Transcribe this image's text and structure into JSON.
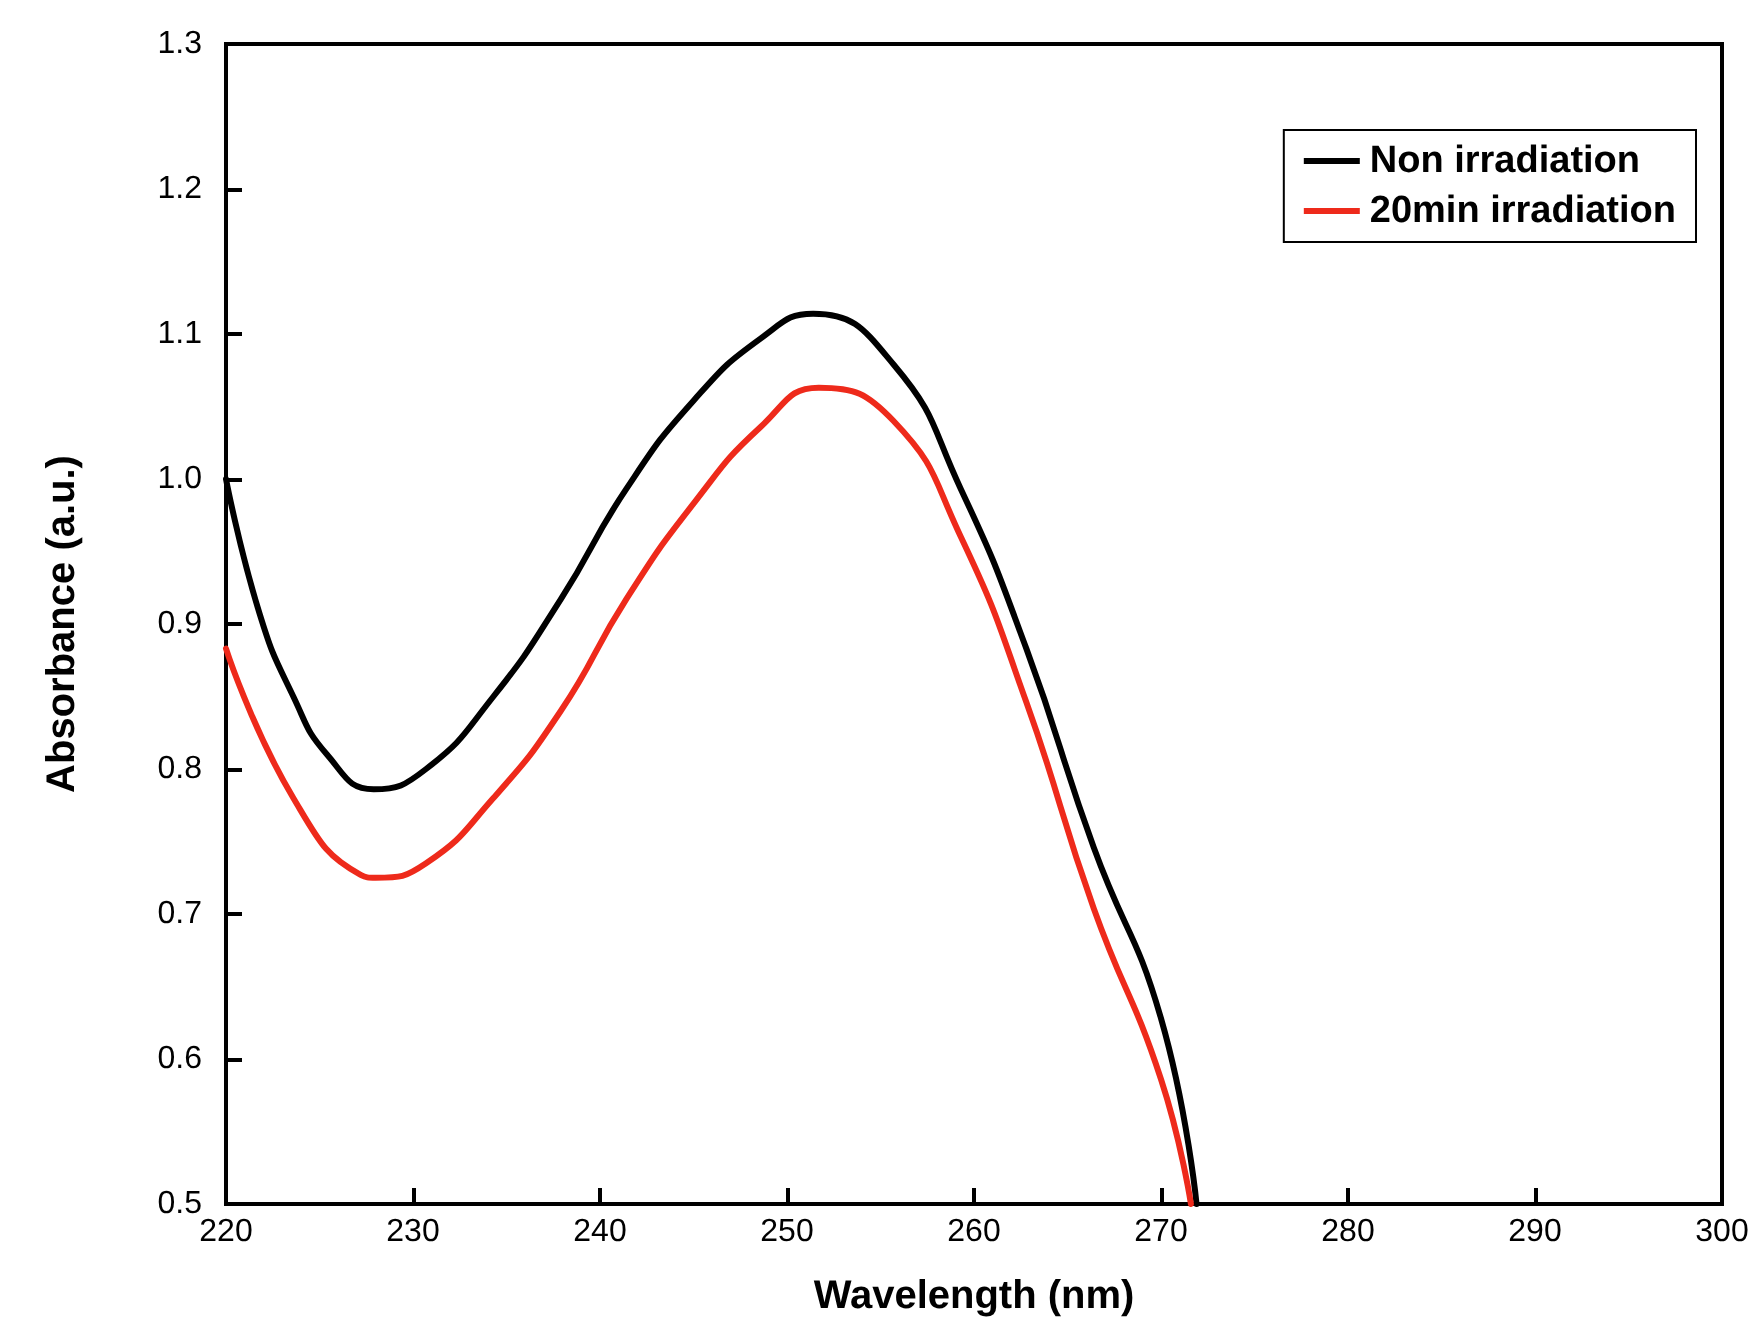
{
  "chart_data": {
    "type": "line",
    "xlabel": "Wavelength (nm)",
    "ylabel": "Absorbance (a.u.)",
    "xlim": [
      220,
      300
    ],
    "xticks": [
      220,
      230,
      240,
      250,
      260,
      270,
      280,
      290,
      300
    ],
    "ylim": [
      0.5,
      1.3
    ],
    "yticks": [
      0.5,
      0.6,
      0.7,
      0.8,
      0.9,
      {
        "value": 1.0,
        "label": "1.0"
      },
      1.1,
      1.2,
      1.3
    ],
    "grid": false,
    "legend": "top right",
    "marker": "none",
    "line_style": "solid",
    "series": [
      {
        "name": "Non irradiation",
        "color": "#000000",
        "x": [
          220,
          221.8,
          223.6,
          225.4,
          227.9,
          230.7,
          234.3,
          237.9,
          241.4,
          245,
          248.6,
          251.4,
          255.7,
          259.3,
          262.8,
          266.4,
          270,
          271.9
        ],
        "values": [
          1.0,
          0.907,
          0.85,
          0.81,
          0.786,
          0.8,
          0.85,
          0.917,
          0.993,
          1.054,
          1.097,
          1.114,
          1.079,
          0.993,
          0.883,
          0.746,
          0.628,
          0.5
        ]
      },
      {
        "name": "20min irradiation",
        "color": "#ee2a1b",
        "x": [
          220,
          223.6,
          227.2,
          228,
          230.7,
          234.3,
          237.9,
          241.4,
          245,
          248.6,
          251.7,
          255.7,
          259.3,
          262.8,
          266.4,
          270,
          271.6
        ],
        "values": [
          0.883,
          0.78,
          0.727,
          0.725,
          0.735,
          0.78,
          0.84,
          0.917,
          0.983,
          1.036,
          1.063,
          1.04,
          0.96,
          0.846,
          0.704,
          0.586,
          0.5
        ]
      }
    ]
  }
}
